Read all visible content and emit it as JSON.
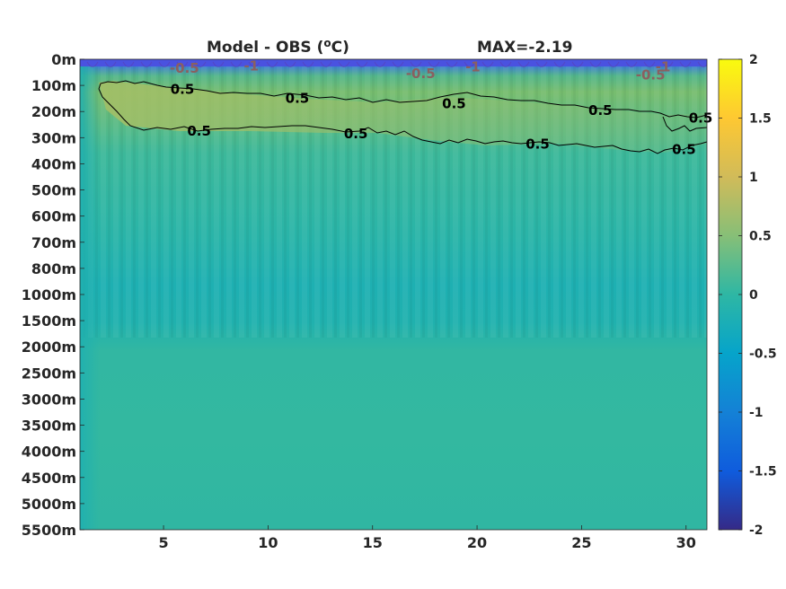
{
  "chart_data": {
    "type": "heatmap",
    "title_left": "Model - OBS (",
    "title_unit_sup": "o",
    "title_unit_tail": "C)",
    "title_right": "MAX=-2.19",
    "x_ticks": [
      5,
      10,
      15,
      20,
      25,
      30
    ],
    "x_range": [
      1,
      31
    ],
    "y_tick_labels": [
      "0m",
      "100m",
      "200m",
      "300m",
      "400m",
      "500m",
      "600m",
      "700m",
      "800m",
      "1000m",
      "1500m",
      "2000m",
      "2500m",
      "3000m",
      "3500m",
      "4000m",
      "4500m",
      "5000m",
      "5500m"
    ],
    "colorbar": {
      "range": [
        -2,
        2
      ],
      "tick_values": [
        2,
        1.5,
        1,
        0.5,
        0,
        -0.5,
        -1,
        -1.5,
        -2
      ],
      "tick_labels": [
        "2",
        "1.5",
        "1",
        "0.5",
        "0",
        "-0.5",
        "-1",
        "-1.5",
        "-2"
      ],
      "colormap": "parula"
    },
    "contour_levels": [
      0.5,
      -0.5,
      -1
    ],
    "contour_labels": [
      {
        "text": "0.5",
        "x": 5.9,
        "depth_index": 1.15,
        "color": "#000000"
      },
      {
        "text": "0.5",
        "x": 11.4,
        "depth_index": 1.5,
        "color": "#000000"
      },
      {
        "text": "0.5",
        "x": 18.9,
        "depth_index": 1.7,
        "color": "#000000"
      },
      {
        "text": "0.5",
        "x": 25.9,
        "depth_index": 1.95,
        "color": "#000000"
      },
      {
        "text": "0.5",
        "x": 30.7,
        "depth_index": 2.25,
        "color": "#000000"
      },
      {
        "text": "0.5",
        "x": 6.7,
        "depth_index": 2.75,
        "color": "#000000"
      },
      {
        "text": "0.5",
        "x": 14.2,
        "depth_index": 2.85,
        "color": "#000000"
      },
      {
        "text": "0.5",
        "x": 22.9,
        "depth_index": 3.25,
        "color": "#000000"
      },
      {
        "text": "0.5",
        "x": 29.9,
        "depth_index": 3.45,
        "color": "#000000"
      },
      {
        "text": "-0.5",
        "x": 6.0,
        "depth_index": 0.35,
        "color": "#8a6060"
      },
      {
        "text": "-1",
        "x": 9.2,
        "depth_index": 0.25,
        "color": "#8a6060"
      },
      {
        "text": "-0.5",
        "x": 17.3,
        "depth_index": 0.55,
        "color": "#8a6060"
      },
      {
        "text": "-1",
        "x": 19.8,
        "depth_index": 0.3,
        "color": "#8a6060"
      },
      {
        "text": "-0.5",
        "x": 28.3,
        "depth_index": 0.6,
        "color": "#8a6060"
      },
      {
        "text": "-1",
        "x": 28.9,
        "depth_index": 0.3,
        "color": "#8a6060"
      }
    ]
  }
}
